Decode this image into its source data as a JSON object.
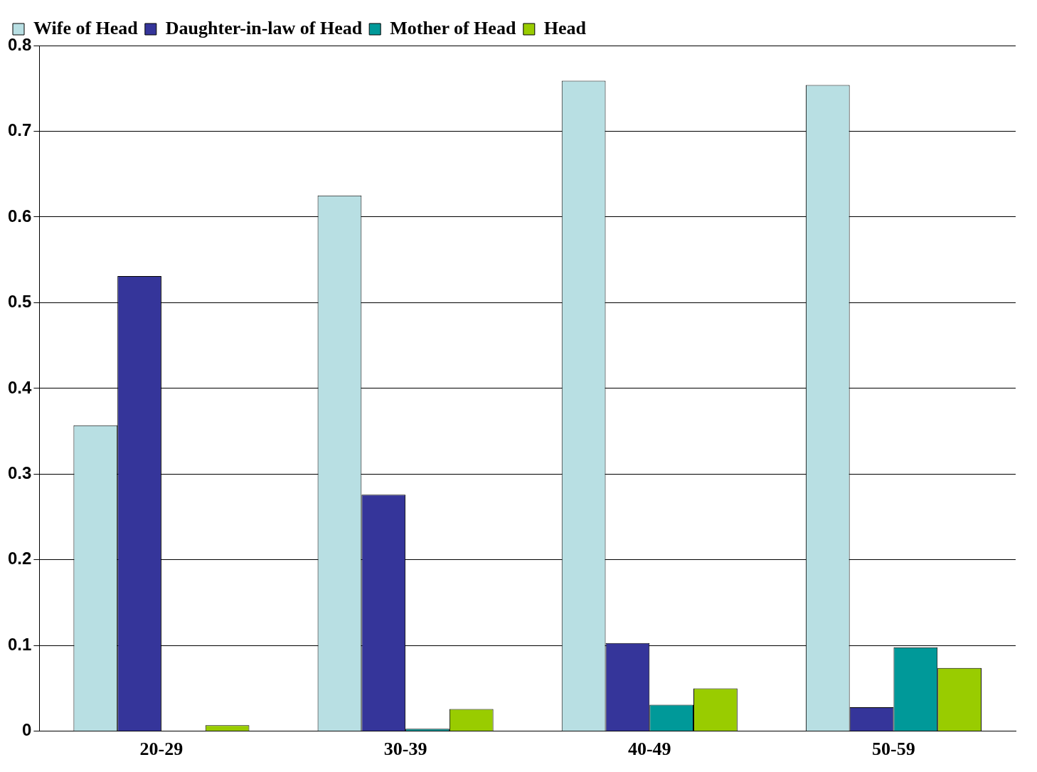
{
  "chart_data": {
    "type": "bar",
    "categories": [
      "20-29",
      "30-39",
      "40-49",
      "50-59"
    ],
    "series": [
      {
        "name": "Wife of Head",
        "color": "#b8dfe3",
        "values": [
          0.357,
          0.625,
          0.759,
          0.754
        ]
      },
      {
        "name": "Daughter-in-law of Head",
        "color": "#35359a",
        "values": [
          0.531,
          0.276,
          0.103,
          0.028
        ]
      },
      {
        "name": "Mother of Head",
        "color": "#009999",
        "values": [
          0,
          0.003,
          0.031,
          0.098
        ]
      },
      {
        "name": "Head",
        "color": "#99cc00",
        "values": [
          0.007,
          0.026,
          0.05,
          0.074
        ]
      }
    ],
    "ylim": [
      0,
      0.8
    ],
    "yticks": [
      0,
      0.1,
      0.2,
      0.3,
      0.4,
      0.5,
      0.6,
      0.7,
      0.8
    ],
    "grid": "y",
    "legend": "top left"
  }
}
